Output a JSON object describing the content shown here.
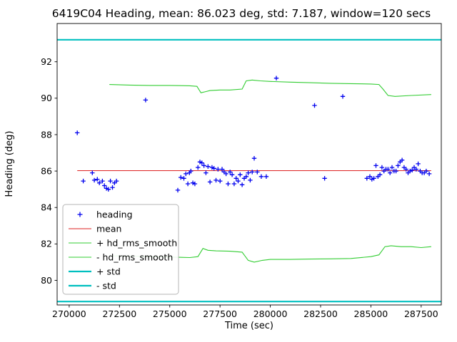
{
  "chart_data": {
    "type": "scatter",
    "title": "6419C04 Heading, mean: 86.023 deg, std: 7.187, window=120 secs",
    "xlabel": "Time (sec)",
    "ylabel": "Heading (deg)",
    "xlim": [
      269400,
      288500
    ],
    "ylim": [
      78.65,
      94.1
    ],
    "xticks": [
      270000,
      272500,
      275000,
      277500,
      280000,
      282500,
      285000,
      287500
    ],
    "yticks": [
      80,
      82,
      84,
      86,
      88,
      90,
      92
    ],
    "grid": false,
    "legend_position": "lower left",
    "stats": {
      "mean_deg": 86.023,
      "std_deg": 7.187,
      "window_secs": 120,
      "station": "6419C04"
    },
    "series": [
      {
        "name": "heading",
        "type": "scatter",
        "marker": "plus",
        "color": "#0000ee",
        "points": [
          [
            270400,
            88.1
          ],
          [
            270700,
            85.45
          ],
          [
            271150,
            85.9
          ],
          [
            271250,
            85.5
          ],
          [
            271400,
            85.55
          ],
          [
            271500,
            85.35
          ],
          [
            271650,
            85.45
          ],
          [
            271750,
            85.2
          ],
          [
            271850,
            85.05
          ],
          [
            271950,
            85.0
          ],
          [
            272050,
            85.45
          ],
          [
            272150,
            85.1
          ],
          [
            272250,
            85.35
          ],
          [
            272350,
            85.45
          ],
          [
            273800,
            89.9
          ],
          [
            275400,
            84.95
          ],
          [
            275550,
            85.65
          ],
          [
            275700,
            85.6
          ],
          [
            275800,
            85.85
          ],
          [
            275900,
            85.3
          ],
          [
            275980,
            85.9
          ],
          [
            276050,
            86.0
          ],
          [
            276150,
            85.35
          ],
          [
            276250,
            85.3
          ],
          [
            276400,
            86.2
          ],
          [
            276500,
            86.5
          ],
          [
            276600,
            86.45
          ],
          [
            276700,
            86.3
          ],
          [
            276800,
            85.9
          ],
          [
            276900,
            86.25
          ],
          [
            277000,
            85.4
          ],
          [
            277100,
            86.2
          ],
          [
            277200,
            86.15
          ],
          [
            277300,
            85.5
          ],
          [
            277400,
            86.1
          ],
          [
            277500,
            85.45
          ],
          [
            277600,
            86.1
          ],
          [
            277700,
            85.95
          ],
          [
            277800,
            85.85
          ],
          [
            277900,
            85.3
          ],
          [
            278000,
            85.95
          ],
          [
            278100,
            85.8
          ],
          [
            278200,
            85.3
          ],
          [
            278300,
            85.6
          ],
          [
            278400,
            85.45
          ],
          [
            278500,
            85.8
          ],
          [
            278600,
            85.25
          ],
          [
            278700,
            85.6
          ],
          [
            278800,
            85.7
          ],
          [
            278900,
            85.9
          ],
          [
            279000,
            85.5
          ],
          [
            279100,
            85.95
          ],
          [
            279200,
            86.7
          ],
          [
            279350,
            85.95
          ],
          [
            279550,
            85.7
          ],
          [
            279800,
            85.7
          ],
          [
            280300,
            91.1
          ],
          [
            282200,
            89.6
          ],
          [
            282700,
            85.6
          ],
          [
            283600,
            90.1
          ],
          [
            284800,
            85.6
          ],
          [
            284950,
            85.7
          ],
          [
            285050,
            85.55
          ],
          [
            285150,
            85.6
          ],
          [
            285250,
            86.3
          ],
          [
            285350,
            85.7
          ],
          [
            285450,
            85.8
          ],
          [
            285550,
            86.2
          ],
          [
            285650,
            86.0
          ],
          [
            285750,
            86.1
          ],
          [
            285850,
            86.1
          ],
          [
            285950,
            85.9
          ],
          [
            286050,
            86.2
          ],
          [
            286150,
            86.0
          ],
          [
            286250,
            86.0
          ],
          [
            286350,
            86.3
          ],
          [
            286450,
            86.5
          ],
          [
            286550,
            86.6
          ],
          [
            286650,
            86.2
          ],
          [
            286750,
            86.1
          ],
          [
            286850,
            85.9
          ],
          [
            286950,
            86.0
          ],
          [
            287050,
            86.05
          ],
          [
            287150,
            86.2
          ],
          [
            287250,
            86.1
          ],
          [
            287350,
            86.4
          ],
          [
            287450,
            86.0
          ],
          [
            287550,
            85.9
          ],
          [
            287650,
            85.9
          ],
          [
            287750,
            86.0
          ],
          [
            287900,
            85.85
          ]
        ]
      },
      {
        "name": "mean",
        "type": "line",
        "color": "#dd2222",
        "width": 1,
        "points": [
          [
            270400,
            86.023
          ],
          [
            288000,
            86.023
          ]
        ]
      },
      {
        "name": "+ hd_rms_smooth",
        "type": "line",
        "color": "#32cd32",
        "width": 1.1,
        "points": [
          [
            272000,
            90.75
          ],
          [
            273000,
            90.72
          ],
          [
            274000,
            90.7
          ],
          [
            275000,
            90.7
          ],
          [
            276000,
            90.68
          ],
          [
            276350,
            90.65
          ],
          [
            276550,
            90.3
          ],
          [
            276750,
            90.35
          ],
          [
            277000,
            90.42
          ],
          [
            277500,
            90.45
          ],
          [
            278000,
            90.45
          ],
          [
            278600,
            90.5
          ],
          [
            278800,
            90.95
          ],
          [
            279100,
            91.0
          ],
          [
            279500,
            90.95
          ],
          [
            280000,
            90.92
          ],
          [
            281000,
            90.88
          ],
          [
            282000,
            90.85
          ],
          [
            283000,
            90.82
          ],
          [
            284000,
            90.8
          ],
          [
            285000,
            90.78
          ],
          [
            285400,
            90.75
          ],
          [
            285600,
            90.5
          ],
          [
            285850,
            90.15
          ],
          [
            286200,
            90.1
          ],
          [
            287000,
            90.15
          ],
          [
            288000,
            90.2
          ]
        ]
      },
      {
        "name": "- hd_rms_smooth",
        "type": "line",
        "color": "#32cd32",
        "width": 1.1,
        "points": [
          [
            272000,
            81.35
          ],
          [
            273000,
            81.33
          ],
          [
            274000,
            81.3
          ],
          [
            275000,
            81.28
          ],
          [
            276000,
            81.25
          ],
          [
            276400,
            81.3
          ],
          [
            276650,
            81.75
          ],
          [
            276900,
            81.65
          ],
          [
            277300,
            81.62
          ],
          [
            278000,
            81.6
          ],
          [
            278600,
            81.55
          ],
          [
            278900,
            81.1
          ],
          [
            279200,
            81.0
          ],
          [
            279600,
            81.1
          ],
          [
            280000,
            81.15
          ],
          [
            281000,
            81.15
          ],
          [
            282000,
            81.17
          ],
          [
            283000,
            81.18
          ],
          [
            284000,
            81.2
          ],
          [
            285000,
            81.3
          ],
          [
            285400,
            81.4
          ],
          [
            285700,
            81.85
          ],
          [
            286000,
            81.9
          ],
          [
            286500,
            81.85
          ],
          [
            287000,
            81.85
          ],
          [
            287500,
            81.8
          ],
          [
            288000,
            81.85
          ]
        ]
      },
      {
        "name": "+ std",
        "type": "line",
        "color": "#00bfbf",
        "width": 2.2,
        "points": [
          [
            269400,
            93.21
          ],
          [
            288500,
            93.21
          ]
        ]
      },
      {
        "name": "- std",
        "type": "line",
        "color": "#00bfbf",
        "width": 2.2,
        "points": [
          [
            269400,
            78.836
          ],
          [
            288500,
            78.836
          ]
        ]
      }
    ]
  }
}
